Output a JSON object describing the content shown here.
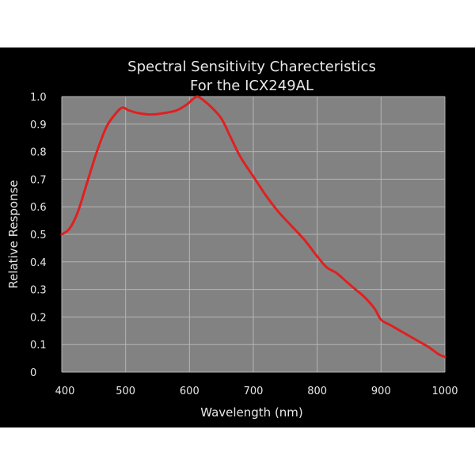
{
  "chart_data": {
    "type": "line",
    "title_lines": [
      "Spectral Sensitivity Charecteristics",
      "For the ICX249AL"
    ],
    "xlabel": "Wavelength (nm)",
    "ylabel": "Relative Response",
    "xlim": [
      400,
      1000
    ],
    "ylim": [
      0,
      1.0
    ],
    "x_ticks": [
      400,
      500,
      600,
      700,
      800,
      900,
      1000
    ],
    "y_ticks": [
      0,
      0.1,
      0.2,
      0.3,
      0.4,
      0.5,
      0.6,
      0.7,
      0.8,
      0.9,
      1.0
    ],
    "y_tick_labels": [
      "0",
      "0.1",
      "0.2",
      "0.3",
      "0.4",
      "0.5",
      "0.6",
      "0.7",
      "0.8",
      "0.9",
      "1.0"
    ],
    "grid": true,
    "series": [
      {
        "color": "#e02020",
        "x": [
          400,
          412,
          425,
          440,
          455,
          470,
          485,
          495,
          505,
          520,
          540,
          560,
          580,
          595,
          605,
          612,
          620,
          635,
          650,
          665,
          680,
          700,
          720,
          740,
          760,
          780,
          800,
          815,
          830,
          845,
          860,
          875,
          890,
          900,
          915,
          930,
          945,
          960,
          975,
          990,
          1000
        ],
        "y": [
          0.5,
          0.52,
          0.58,
          0.69,
          0.8,
          0.89,
          0.94,
          0.96,
          0.95,
          0.94,
          0.935,
          0.94,
          0.95,
          0.97,
          0.99,
          1.0,
          0.99,
          0.96,
          0.92,
          0.85,
          0.78,
          0.71,
          0.64,
          0.58,
          0.53,
          0.48,
          0.42,
          0.38,
          0.36,
          0.33,
          0.3,
          0.27,
          0.23,
          0.19,
          0.17,
          0.15,
          0.13,
          0.11,
          0.09,
          0.065,
          0.055
        ]
      }
    ],
    "colors": {
      "background": "#000000",
      "plot_area": "#828282",
      "grid": "#b4b4b4",
      "text": "#e8e8e8",
      "line": "#e02020"
    }
  }
}
